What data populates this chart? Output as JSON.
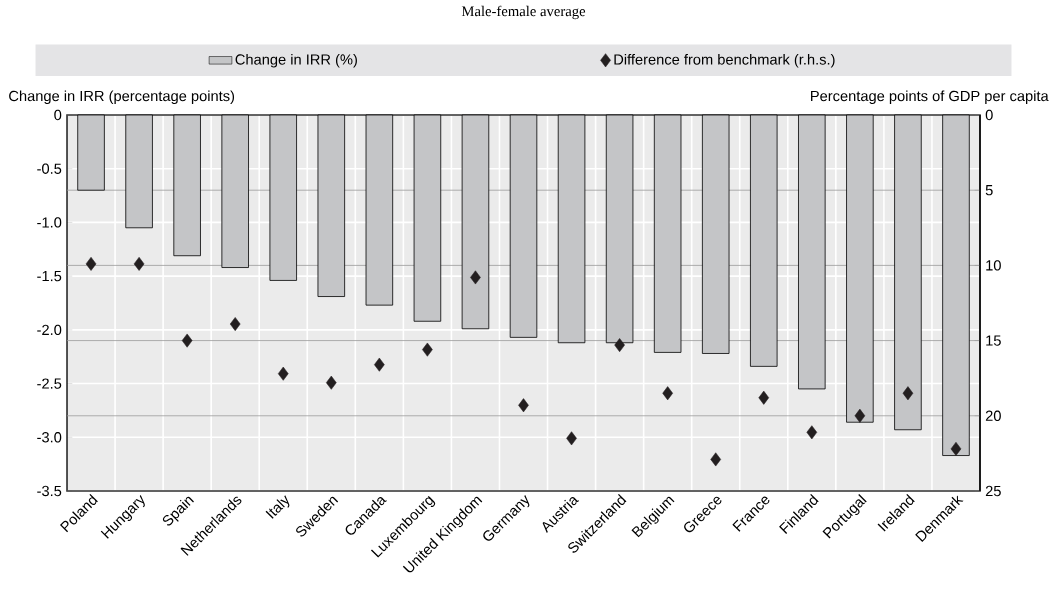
{
  "chart_data": {
    "type": "bar",
    "title": "Male-female average",
    "ylabel": "Change in IRR (percentage points)",
    "y2label": "Percentage points of GDP per capita",
    "categories": [
      "Poland",
      "Hungary",
      "Spain",
      "Netherlands",
      "Italy",
      "Sweden",
      "Canada",
      "Luxembourg",
      "United Kingdom",
      "Germany",
      "Austria",
      "Switzerland",
      "Belgium",
      "Greece",
      "France",
      "Finland",
      "Portugal",
      "Ireland",
      "Denmark"
    ],
    "series": [
      {
        "name": "Change in IRR (%)",
        "color": "#c4c5c7",
        "values": [
          -0.7,
          -1.05,
          -1.31,
          -1.42,
          -1.54,
          -1.69,
          -1.77,
          -1.92,
          -1.99,
          -2.07,
          -2.12,
          -2.12,
          -2.21,
          -2.22,
          -2.34,
          -2.55,
          -2.86,
          -2.93,
          -3.17
        ]
      },
      {
        "name": "Difference from benchmark (r.h.s.)",
        "type": "scatter",
        "axis": "y2",
        "marker": "diamond",
        "color": "#231f20",
        "values": [
          9.9,
          9.9,
          15.0,
          13.9,
          17.2,
          17.8,
          16.6,
          15.6,
          10.8,
          19.3,
          21.5,
          15.3,
          18.5,
          22.9,
          18.8,
          21.1,
          20.0,
          18.5,
          22.2
        ]
      }
    ],
    "ylim": [
      -3.5,
      0
    ],
    "yticks": [
      0,
      -0.5,
      {
        "value": -1.0,
        "label": "-1.0"
      },
      -1.5,
      {
        "value": -2.0,
        "label": "-2.0"
      },
      -2.5,
      {
        "value": -3.0,
        "label": "-3.0"
      },
      -3.5
    ],
    "y2lim": [
      25,
      0
    ],
    "y2ticks": [
      0,
      5,
      10,
      15,
      20,
      25
    ],
    "grid": true,
    "legend": "top"
  }
}
